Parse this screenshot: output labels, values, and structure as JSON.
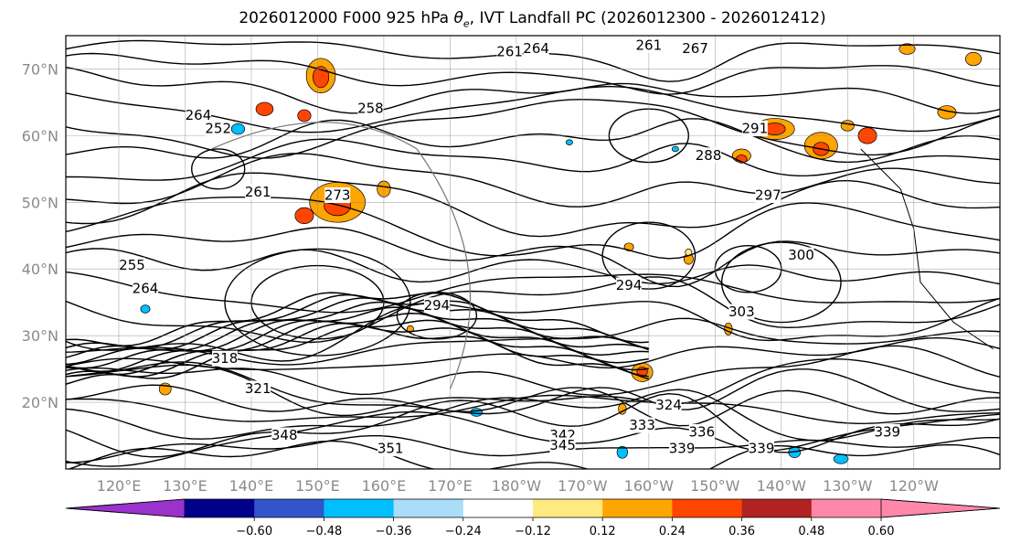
{
  "title": {
    "prefix": "2026012000 F000 925 hPa ",
    "theta_symbol": "θ",
    "theta_sub": "e",
    "suffix": ", IVT Landfall PC (2026012300 - 2026012412)"
  },
  "map": {
    "lat_labels": [
      {
        "text": "70°N",
        "lat": 70
      },
      {
        "text": "60°N",
        "lat": 60
      },
      {
        "text": "50°N",
        "lat": 50
      },
      {
        "text": "40°N",
        "lat": 40
      },
      {
        "text": "30°N",
        "lat": 30
      },
      {
        "text": "20°N",
        "lat": 20
      }
    ],
    "lon_labels": [
      {
        "text": "120°E",
        "lon": 120
      },
      {
        "text": "130°E",
        "lon": 130
      },
      {
        "text": "140°E",
        "lon": 140
      },
      {
        "text": "150°E",
        "lon": 150
      },
      {
        "text": "160°E",
        "lon": 160
      },
      {
        "text": "170°E",
        "lon": 170
      },
      {
        "text": "180°W",
        "lon": 180
      },
      {
        "text": "170°W",
        "lon": 190
      },
      {
        "text": "160°W",
        "lon": 200
      },
      {
        "text": "150°W",
        "lon": 210
      },
      {
        "text": "140°W",
        "lon": 220
      },
      {
        "text": "130°W",
        "lon": 230
      },
      {
        "text": "120°W",
        "lon": 240
      }
    ],
    "lon_range": [
      112,
      253
    ],
    "lat_range": [
      10,
      75
    ],
    "contour_labels": [
      {
        "text": "261",
        "lon": 179,
        "lat": 72.5
      },
      {
        "text": "264",
        "lon": 183,
        "lat": 73
      },
      {
        "text": "261",
        "lon": 200,
        "lat": 73.5
      },
      {
        "text": "267",
        "lon": 207,
        "lat": 73
      },
      {
        "text": "258",
        "lon": 158,
        "lat": 64
      },
      {
        "text": "264",
        "lon": 132,
        "lat": 63
      },
      {
        "text": "252",
        "lon": 135,
        "lat": 61
      },
      {
        "text": "261",
        "lon": 141,
        "lat": 51.5
      },
      {
        "text": "273",
        "lon": 153,
        "lat": 51
      },
      {
        "text": "255",
        "lon": 122,
        "lat": 40.5
      },
      {
        "text": "264",
        "lon": 124,
        "lat": 37
      },
      {
        "text": "294",
        "lon": 168,
        "lat": 34.5
      },
      {
        "text": "294",
        "lon": 197,
        "lat": 37.5
      },
      {
        "text": "303",
        "lon": 214,
        "lat": 33.5
      },
      {
        "text": "318",
        "lon": 136,
        "lat": 26.5
      },
      {
        "text": "321",
        "lon": 141,
        "lat": 22
      },
      {
        "text": "324",
        "lon": 203,
        "lat": 19.5
      },
      {
        "text": "333",
        "lon": 199,
        "lat": 16.5
      },
      {
        "text": "336",
        "lon": 208,
        "lat": 15.5
      },
      {
        "text": "342",
        "lon": 187,
        "lat": 15
      },
      {
        "text": "345",
        "lon": 187,
        "lat": 13.5
      },
      {
        "text": "339",
        "lon": 205,
        "lat": 13
      },
      {
        "text": "339",
        "lon": 217,
        "lat": 13
      },
      {
        "text": "339",
        "lon": 236,
        "lat": 15.5
      },
      {
        "text": "351",
        "lon": 161,
        "lat": 13
      },
      {
        "text": "348",
        "lon": 145,
        "lat": 15
      },
      {
        "text": "300",
        "lon": 223,
        "lat": 42
      },
      {
        "text": "297",
        "lon": 218,
        "lat": 51
      },
      {
        "text": "291",
        "lon": 216,
        "lat": 61
      },
      {
        "text": "288",
        "lon": 209,
        "lat": 57
      }
    ]
  },
  "colorbar": {
    "ticks": [
      "−0.60",
      "−0.48",
      "−0.36",
      "−0.24",
      "−0.12",
      "0.12",
      "0.24",
      "0.36",
      "0.48",
      "0.60"
    ],
    "colors": [
      "#9933cc",
      "#00008b",
      "#3355cc",
      "#00bfff",
      "#aaddf8",
      "#ffffff",
      "#ffea80",
      "#ffa500",
      "#ff4500",
      "#b22222",
      "#ff88aa",
      "#ff88aa"
    ]
  }
}
